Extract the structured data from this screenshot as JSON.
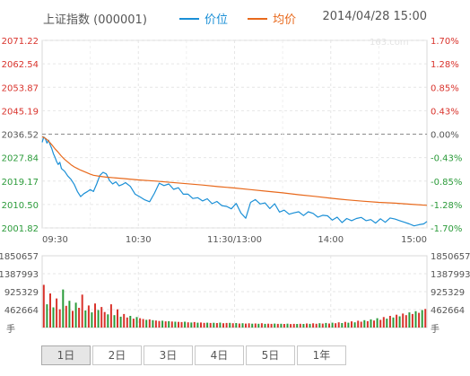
{
  "header": {
    "title": "上证指数 (000001)",
    "datetime": "2014/04/28 15:00"
  },
  "watermark": "163.com",
  "legend": [
    {
      "label": "价位",
      "color": "#1a8fd6"
    },
    {
      "label": "均价",
      "color": "#e8691c"
    }
  ],
  "colors": {
    "up": "#d9332c",
    "down": "#2b9b3a",
    "neutral": "#555555",
    "price": "#1a8fd6",
    "average": "#e8691c"
  },
  "chart_data": [
    {
      "type": "line",
      "title": "",
      "prev_close": 2036.52,
      "y_ticks": [
        {
          "value": 2071.22,
          "label": "2071.22",
          "pct_label": "1.70%",
          "color": "#d9332c"
        },
        {
          "value": 2062.54,
          "label": "2062.54",
          "pct_label": "1.28%",
          "color": "#d9332c"
        },
        {
          "value": 2053.87,
          "label": "2053.87",
          "pct_label": "0.85%",
          "color": "#d9332c"
        },
        {
          "value": 2045.19,
          "label": "2045.19",
          "pct_label": "0.43%",
          "color": "#d9332c"
        },
        {
          "value": 2036.52,
          "label": "2036.52",
          "pct_label": "0.00%",
          "color": "#555555"
        },
        {
          "value": 2027.84,
          "label": "2027.84",
          "pct_label": "-0.43%",
          "color": "#2b9b3a"
        },
        {
          "value": 2019.17,
          "label": "2019.17",
          "pct_label": "-0.85%",
          "color": "#2b9b3a"
        },
        {
          "value": 2010.5,
          "label": "2010.50",
          "pct_label": "-1.28%",
          "color": "#2b9b3a"
        },
        {
          "value": 2001.82,
          "label": "2001.82",
          "pct_label": "-1.70%",
          "color": "#2b9b3a"
        }
      ],
      "ylim": [
        2001.82,
        2071.22
      ],
      "x_ticks": [
        "09:30",
        "10:30",
        "11:30/13:00",
        "14:00",
        "15:00"
      ],
      "x_ticks_minutes": [
        0,
        60,
        120,
        180,
        240
      ],
      "xlim": [
        0,
        240
      ],
      "grid": true,
      "legend_position": "top",
      "series": [
        {
          "name": "价位",
          "x": [
            0,
            1,
            2,
            3,
            4,
            5,
            6,
            7,
            8,
            9,
            10,
            11,
            12,
            14,
            16,
            18,
            20,
            22,
            24,
            26,
            28,
            30,
            32,
            34,
            36,
            38,
            40,
            42,
            44,
            46,
            48,
            50,
            52,
            55,
            58,
            61,
            64,
            67,
            70,
            73,
            76,
            79,
            82,
            85,
            88,
            91,
            94,
            97,
            100,
            103,
            106,
            109,
            112,
            115,
            118,
            121,
            124,
            127,
            130,
            133,
            136,
            139,
            142,
            145,
            148,
            151,
            154,
            157,
            160,
            163,
            166,
            169,
            172,
            175,
            178,
            181,
            184,
            187,
            190,
            193,
            196,
            199,
            202,
            205,
            208,
            211,
            214,
            217,
            220,
            223,
            226,
            229,
            232,
            235,
            238,
            240
          ],
          "values": [
            2033.5,
            2035.5,
            2034.8,
            2033.2,
            2034.3,
            2032.6,
            2031.2,
            2029.3,
            2028.0,
            2026.4,
            2025.3,
            2026.1,
            2023.8,
            2022.8,
            2021.0,
            2019.8,
            2017.9,
            2015.3,
            2013.4,
            2014.5,
            2015.2,
            2016.0,
            2015.3,
            2018.1,
            2021.2,
            2022.4,
            2021.8,
            2019.4,
            2018.1,
            2018.9,
            2017.4,
            2017.9,
            2018.6,
            2017.2,
            2014.3,
            2013.3,
            2012.2,
            2011.5,
            2014.6,
            2018.4,
            2017.5,
            2018.1,
            2016.1,
            2016.7,
            2014.3,
            2014.3,
            2012.7,
            2013.0,
            2011.8,
            2012.6,
            2010.8,
            2011.6,
            2010.1,
            2009.8,
            2008.9,
            2010.9,
            2007.3,
            2005.4,
            2011.3,
            2012.3,
            2010.7,
            2011.1,
            2009.0,
            2010.8,
            2007.7,
            2008.4,
            2006.9,
            2007.4,
            2007.8,
            2006.4,
            2007.8,
            2007.2,
            2005.8,
            2006.5,
            2006.3,
            2004.7,
            2005.8,
            2003.8,
            2005.3,
            2004.5,
            2005.3,
            2005.7,
            2004.5,
            2004.9,
            2003.6,
            2005.2,
            2003.9,
            2005.5,
            2005.1,
            2004.5,
            2003.9,
            2003.3,
            2002.6,
            2003.0,
            2003.3,
            2004.2
          ]
        },
        {
          "name": "均价",
          "x": [
            0,
            2,
            4,
            6,
            8,
            10,
            12,
            14,
            16,
            18,
            20,
            22,
            24,
            26,
            28,
            30,
            32,
            36,
            40,
            50,
            60,
            70,
            80,
            90,
            100,
            110,
            120,
            130,
            140,
            150,
            160,
            170,
            180,
            190,
            200,
            210,
            220,
            230,
            240
          ],
          "values": [
            2035.6,
            2035.0,
            2034.0,
            2032.6,
            2031.1,
            2029.8,
            2028.4,
            2027.2,
            2026.2,
            2025.2,
            2024.4,
            2023.8,
            2023.2,
            2022.7,
            2022.2,
            2021.7,
            2021.3,
            2020.9,
            2020.6,
            2020.1,
            2019.6,
            2019.2,
            2018.7,
            2018.2,
            2017.7,
            2017.1,
            2016.6,
            2016.0,
            2015.4,
            2014.8,
            2014.1,
            2013.5,
            2012.8,
            2012.2,
            2011.7,
            2011.3,
            2011.0,
            2010.6,
            2010.2
          ]
        }
      ]
    },
    {
      "type": "bar",
      "title": "",
      "y_ticks": [
        {
          "value": 1850657,
          "label": "1850657"
        },
        {
          "value": 1387993,
          "label": "1387993"
        },
        {
          "value": 925329,
          "label": "925329"
        },
        {
          "value": 462664,
          "label": "462664"
        }
      ],
      "ylim": [
        0,
        1850657
      ],
      "unit_label": "手",
      "xlim": [
        0,
        240
      ],
      "bar_step_minutes": 2,
      "colors_up_down": [
        "#d9332c",
        "#2b9b3a"
      ],
      "values": [
        1100000,
        600000,
        880000,
        520000,
        750000,
        470000,
        980000,
        560000,
        690000,
        430000,
        640000,
        510000,
        850000,
        440000,
        570000,
        390000,
        620000,
        450000,
        530000,
        400000,
        340000,
        600000,
        320000,
        470000,
        280000,
        350000,
        260000,
        300000,
        230000,
        270000,
        240000,
        220000,
        200000,
        210000,
        190000,
        180000,
        170000,
        175000,
        160000,
        165000,
        155000,
        150000,
        145000,
        140000,
        150000,
        135000,
        130000,
        140000,
        125000,
        130000,
        120000,
        125000,
        118000,
        122000,
        115000,
        128000,
        112000,
        118000,
        120000,
        110000,
        115000,
        105000,
        112000,
        102000,
        108000,
        100000,
        105000,
        98000,
        110000,
        96000,
        100000,
        95000,
        102000,
        94000,
        98000,
        92000,
        100000,
        90000,
        96000,
        93000,
        98000,
        92000,
        104000,
        95000,
        108000,
        98000,
        112000,
        102000,
        118000,
        105000,
        125000,
        110000,
        135000,
        115000,
        145000,
        125000,
        160000,
        135000,
        175000,
        150000,
        190000,
        165000,
        210000,
        180000,
        240000,
        200000,
        270000,
        230000,
        300000,
        260000,
        330000,
        290000,
        360000,
        320000,
        390000,
        350000,
        420000,
        380000,
        450000,
        480000
      ],
      "up_flags": [
        1,
        0,
        1,
        0,
        1,
        1,
        0,
        1,
        0,
        1,
        0,
        1,
        1,
        0,
        1,
        0,
        1,
        0,
        1,
        1,
        0,
        1,
        0,
        1,
        0,
        1,
        1,
        0,
        1,
        0,
        1,
        1,
        0,
        1,
        0,
        1,
        1,
        0,
        1,
        0,
        1,
        0,
        1,
        1,
        0,
        1,
        0,
        1,
        0,
        1,
        1,
        0,
        1,
        0,
        1,
        0,
        1,
        1,
        0,
        1,
        0,
        1,
        0,
        1,
        1,
        0,
        1,
        0,
        1,
        0,
        1,
        1,
        0,
        1,
        0,
        1,
        0,
        1,
        1,
        0,
        1,
        0,
        1,
        0,
        1,
        1,
        0,
        1,
        0,
        1,
        0,
        1,
        1,
        0,
        1,
        0,
        1,
        0,
        1,
        1,
        0,
        1,
        0,
        1,
        0,
        1,
        1,
        0,
        1,
        0,
        1,
        0,
        1,
        1,
        0,
        1,
        0,
        1,
        0,
        1
      ]
    }
  ],
  "tabs": [
    {
      "label": "1日",
      "active": true
    },
    {
      "label": "2日",
      "active": false
    },
    {
      "label": "3日",
      "active": false
    },
    {
      "label": "4日",
      "active": false
    },
    {
      "label": "5日",
      "active": false
    },
    {
      "label": "1年",
      "active": false
    }
  ]
}
